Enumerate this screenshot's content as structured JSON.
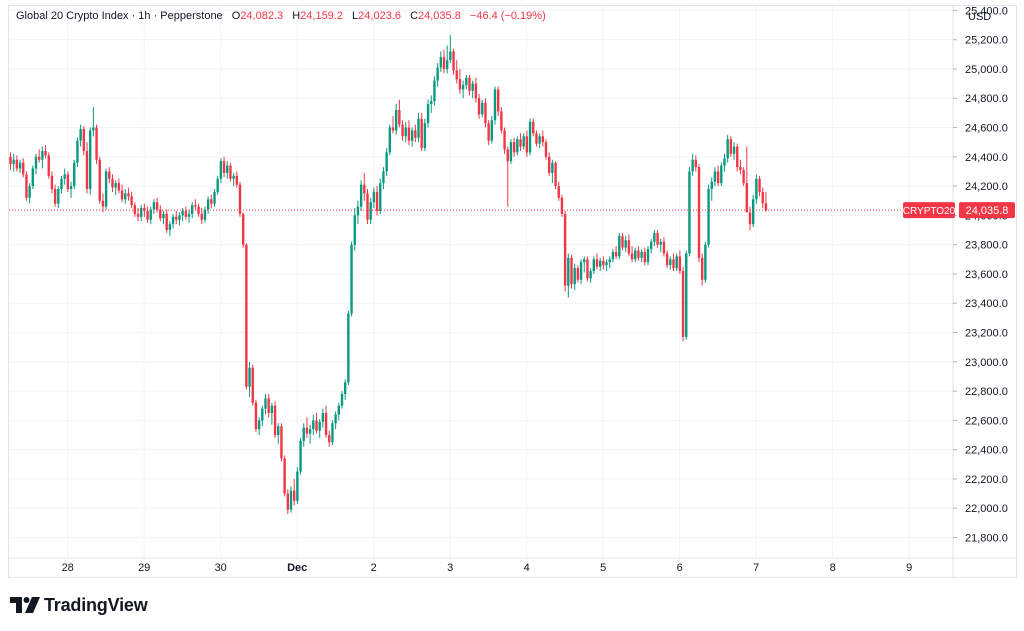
{
  "legend": {
    "symbol_title": "Global 20 Crypto Index · 1h · Pepperstone",
    "open_label": "O",
    "open": "24,082.3",
    "high_label": "H",
    "high": "24,159.2",
    "low_label": "L",
    "low": "24,023.6",
    "close_label": "C",
    "close": "24,035.8",
    "change": "−46.4 (−0.19%)"
  },
  "currency": "USD",
  "brand": {
    "name": "TradingView",
    "icon": "tradingview-logo-icon"
  },
  "colors": {
    "up": "#089981",
    "down": "#f23645",
    "grid": "#f0f3fa",
    "axis_text": "#131722"
  },
  "chart_data": {
    "type": "candlestick",
    "symbol_label": "CRYPTO20",
    "last_price": 24035.8,
    "last_price_label": "24,035.8",
    "ylim": [
      21660,
      25430
    ],
    "y_ticks": [
      21800,
      22000,
      22200,
      22400,
      22600,
      22800,
      23000,
      23200,
      23400,
      23600,
      23800,
      24000,
      24200,
      24400,
      24600,
      24800,
      25000,
      25200,
      25400
    ],
    "y_tick_labels": [
      "21,800.0",
      "22,000.0",
      "22,200.0",
      "22,400.0",
      "22,600.0",
      "22,800.0",
      "23,000.0",
      "23,200.0",
      "23,400.0",
      "23,600.0",
      "23,800.0",
      "24,000.0",
      "24,200.0",
      "24,400.0",
      "24,600.0",
      "24,800.0",
      "25,000.0",
      "25,200.0",
      "25,400.0"
    ],
    "x_ticks": [
      "28",
      "29",
      "30",
      "Dec",
      "2",
      "3",
      "4",
      "5",
      "6",
      "7",
      "8",
      "9"
    ],
    "x_tick_positions": [
      4,
      28,
      52,
      76,
      100,
      124,
      148,
      172,
      196,
      220,
      244,
      268
    ],
    "bars_per_day": 24,
    "first_bar_index": 3,
    "candles": [
      [
        24400,
        24430,
        24310,
        24350
      ],
      [
        24350,
        24420,
        24300,
        24380
      ],
      [
        24380,
        24410,
        24300,
        24320
      ],
      [
        24320,
        24380,
        24290,
        24360
      ],
      [
        24360,
        24390,
        24260,
        24280
      ],
      [
        24280,
        24300,
        24100,
        24120
      ],
      [
        24120,
        24220,
        24080,
        24200
      ],
      [
        24200,
        24340,
        24180,
        24320
      ],
      [
        24320,
        24420,
        24280,
        24400
      ],
      [
        24400,
        24450,
        24360,
        24380
      ],
      [
        24380,
        24470,
        24320,
        24440
      ],
      [
        24440,
        24480,
        24390,
        24410
      ],
      [
        24410,
        24430,
        24250,
        24270
      ],
      [
        24270,
        24300,
        24150,
        24180
      ],
      [
        24180,
        24210,
        24060,
        24080
      ],
      [
        24080,
        24200,
        24050,
        24180
      ],
      [
        24180,
        24270,
        24150,
        24250
      ],
      [
        24250,
        24320,
        24210,
        24280
      ],
      [
        24280,
        24300,
        24160,
        24180
      ],
      [
        24180,
        24230,
        24120,
        24200
      ],
      [
        24200,
        24380,
        24180,
        24360
      ],
      [
        24360,
        24530,
        24330,
        24510
      ],
      [
        24510,
        24620,
        24470,
        24590
      ],
      [
        24590,
        24610,
        24410,
        24440
      ],
      [
        24440,
        24500,
        24150,
        24180
      ],
      [
        24180,
        24600,
        24140,
        24580
      ],
      [
        24580,
        24740,
        24540,
        24600
      ],
      [
        24600,
        24620,
        24350,
        24380
      ],
      [
        24380,
        24400,
        24080,
        24100
      ],
      [
        24100,
        24150,
        24020,
        24060
      ],
      [
        24060,
        24320,
        24040,
        24300
      ],
      [
        24300,
        24330,
        24220,
        24250
      ],
      [
        24250,
        24280,
        24160,
        24190
      ],
      [
        24190,
        24240,
        24140,
        24220
      ],
      [
        24220,
        24250,
        24150,
        24170
      ],
      [
        24170,
        24210,
        24090,
        24110
      ],
      [
        24110,
        24180,
        24080,
        24150
      ],
      [
        24150,
        24190,
        24100,
        24130
      ],
      [
        24130,
        24160,
        24050,
        24070
      ],
      [
        24070,
        24090,
        23990,
        24010
      ],
      [
        24010,
        24050,
        23960,
        23990
      ],
      [
        23990,
        24070,
        23960,
        24050
      ],
      [
        24050,
        24080,
        23990,
        24030
      ],
      [
        24030,
        24060,
        23950,
        23970
      ],
      [
        23970,
        24060,
        23940,
        24040
      ],
      [
        24040,
        24110,
        24010,
        24090
      ],
      [
        24090,
        24120,
        24020,
        24040
      ],
      [
        24040,
        24070,
        23960,
        23980
      ],
      [
        23980,
        24030,
        23940,
        24010
      ],
      [
        24010,
        24040,
        23880,
        23900
      ],
      [
        23900,
        23960,
        23860,
        23940
      ],
      [
        23940,
        24010,
        23910,
        23990
      ],
      [
        23990,
        24030,
        23940,
        23970
      ],
      [
        23970,
        24020,
        23930,
        24000
      ],
      [
        24000,
        24050,
        23960,
        24030
      ],
      [
        24030,
        24060,
        23970,
        23990
      ],
      [
        23990,
        24040,
        23950,
        24010
      ],
      [
        24010,
        24090,
        23980,
        24070
      ],
      [
        24070,
        24110,
        24040,
        24060
      ],
      [
        24060,
        24080,
        23990,
        24010
      ],
      [
        24010,
        24050,
        23940,
        23970
      ],
      [
        23970,
        24060,
        23950,
        24040
      ],
      [
        24040,
        24130,
        24010,
        24110
      ],
      [
        24110,
        24140,
        24050,
        24080
      ],
      [
        24080,
        24180,
        24060,
        24160
      ],
      [
        24160,
        24270,
        24140,
        24250
      ],
      [
        24250,
        24390,
        24220,
        24370
      ],
      [
        24370,
        24400,
        24260,
        24290
      ],
      [
        24290,
        24370,
        24250,
        24340
      ],
      [
        24340,
        24360,
        24230,
        24250
      ],
      [
        24250,
        24290,
        24200,
        24270
      ],
      [
        24270,
        24300,
        24190,
        24210
      ],
      [
        24210,
        24230,
        23990,
        24010
      ],
      [
        24010,
        24020,
        23780,
        23800
      ],
      [
        23800,
        23810,
        22810,
        22830
      ],
      [
        22830,
        23000,
        22760,
        22960
      ],
      [
        22960,
        22980,
        22700,
        22720
      ],
      [
        22720,
        22740,
        22520,
        22540
      ],
      [
        22540,
        22620,
        22500,
        22600
      ],
      [
        22600,
        22700,
        22560,
        22680
      ],
      [
        22680,
        22780,
        22640,
        22750
      ],
      [
        22750,
        22780,
        22620,
        22650
      ],
      [
        22650,
        22720,
        22570,
        22700
      ],
      [
        22700,
        22730,
        22480,
        22500
      ],
      [
        22500,
        22580,
        22440,
        22560
      ],
      [
        22560,
        22580,
        22320,
        22340
      ],
      [
        22340,
        22360,
        22080,
        22100
      ],
      [
        22100,
        22130,
        21960,
        21990
      ],
      [
        21990,
        22150,
        21970,
        22120
      ],
      [
        22120,
        22200,
        22020,
        22050
      ],
      [
        22050,
        22280,
        22030,
        22250
      ],
      [
        22250,
        22480,
        22230,
        22460
      ],
      [
        22460,
        22580,
        22420,
        22550
      ],
      [
        22550,
        22620,
        22480,
        22510
      ],
      [
        22510,
        22570,
        22440,
        22540
      ],
      [
        22540,
        22640,
        22500,
        22600
      ],
      [
        22600,
        22650,
        22510,
        22530
      ],
      [
        22530,
        22610,
        22480,
        22590
      ],
      [
        22590,
        22680,
        22550,
        22650
      ],
      [
        22650,
        22700,
        22480,
        22500
      ],
      [
        22500,
        22530,
        22420,
        22450
      ],
      [
        22450,
        22600,
        22430,
        22580
      ],
      [
        22580,
        22660,
        22540,
        22640
      ],
      [
        22640,
        22720,
        22600,
        22700
      ],
      [
        22700,
        22800,
        22680,
        22780
      ],
      [
        22780,
        22880,
        22740,
        22860
      ],
      [
        22860,
        23350,
        22840,
        23330
      ],
      [
        23330,
        23820,
        23310,
        23800
      ],
      [
        23800,
        24050,
        23760,
        24000
      ],
      [
        24000,
        24100,
        23940,
        24060
      ],
      [
        24060,
        24240,
        24030,
        24210
      ],
      [
        24210,
        24290,
        24100,
        24150
      ],
      [
        24150,
        24180,
        23940,
        23970
      ],
      [
        23970,
        24120,
        23940,
        24090
      ],
      [
        24090,
        24190,
        24050,
        24160
      ],
      [
        24160,
        24200,
        24000,
        24030
      ],
      [
        24030,
        24250,
        24010,
        24220
      ],
      [
        24220,
        24330,
        24180,
        24300
      ],
      [
        24300,
        24460,
        24270,
        24430
      ],
      [
        24430,
        24620,
        24410,
        24600
      ],
      [
        24600,
        24680,
        24560,
        24580
      ],
      [
        24580,
        24760,
        24550,
        24720
      ],
      [
        24720,
        24790,
        24600,
        24620
      ],
      [
        24620,
        24650,
        24510,
        24540
      ],
      [
        24540,
        24640,
        24500,
        24600
      ],
      [
        24600,
        24650,
        24480,
        24510
      ],
      [
        24510,
        24600,
        24470,
        24580
      ],
      [
        24580,
        24620,
        24500,
        24530
      ],
      [
        24530,
        24700,
        24500,
        24660
      ],
      [
        24660,
        24700,
        24440,
        24460
      ],
      [
        24460,
        24660,
        24440,
        24630
      ],
      [
        24630,
        24790,
        24600,
        24760
      ],
      [
        24760,
        24820,
        24700,
        24780
      ],
      [
        24780,
        24950,
        24750,
        24920
      ],
      [
        24920,
        25040,
        24880,
        25010
      ],
      [
        25010,
        25120,
        24980,
        25080
      ],
      [
        25080,
        25130,
        24970,
        25000
      ],
      [
        25000,
        25160,
        24970,
        25060
      ],
      [
        25060,
        25230,
        25040,
        25120
      ],
      [
        25120,
        25140,
        24960,
        24990
      ],
      [
        24990,
        25060,
        24900,
        24930
      ],
      [
        24930,
        25000,
        24830,
        24860
      ],
      [
        24860,
        24920,
        24800,
        24890
      ],
      [
        24890,
        24960,
        24860,
        24940
      ],
      [
        24940,
        24960,
        24820,
        24850
      ],
      [
        24850,
        24920,
        24800,
        24900
      ],
      [
        24900,
        24940,
        24770,
        24800
      ],
      [
        24800,
        24830,
        24660,
        24690
      ],
      [
        24690,
        24790,
        24670,
        24770
      ],
      [
        24770,
        24800,
        24600,
        24630
      ],
      [
        24630,
        24650,
        24480,
        24510
      ],
      [
        24510,
        24680,
        24490,
        24650
      ],
      [
        24650,
        24880,
        24620,
        24860
      ],
      [
        24860,
        24880,
        24680,
        24710
      ],
      [
        24710,
        24740,
        24560,
        24580
      ],
      [
        24580,
        24600,
        24420,
        24450
      ],
      [
        24450,
        24470,
        24060,
        24370
      ],
      [
        24370,
        24520,
        24350,
        24500
      ],
      [
        24500,
        24530,
        24400,
        24430
      ],
      [
        24430,
        24540,
        24410,
        24520
      ],
      [
        24520,
        24560,
        24440,
        24470
      ],
      [
        24470,
        24560,
        24450,
        24540
      ],
      [
        24540,
        24580,
        24400,
        24430
      ],
      [
        24430,
        24660,
        24410,
        24640
      ],
      [
        24640,
        24660,
        24540,
        24560
      ],
      [
        24560,
        24580,
        24470,
        24490
      ],
      [
        24490,
        24560,
        24460,
        24540
      ],
      [
        24540,
        24580,
        24470,
        24500
      ],
      [
        24500,
        24520,
        24380,
        24400
      ],
      [
        24400,
        24430,
        24270,
        24290
      ],
      [
        24290,
        24380,
        24220,
        24360
      ],
      [
        24360,
        24370,
        24180,
        24200
      ],
      [
        24200,
        24230,
        24100,
        24120
      ],
      [
        24120,
        24140,
        23990,
        24010
      ],
      [
        24010,
        24030,
        23480,
        23520
      ],
      [
        23520,
        23740,
        23440,
        23710
      ],
      [
        23710,
        23730,
        23500,
        23530
      ],
      [
        23530,
        23670,
        23490,
        23640
      ],
      [
        23640,
        23660,
        23540,
        23560
      ],
      [
        23560,
        23700,
        23530,
        23680
      ],
      [
        23680,
        23720,
        23610,
        23700
      ],
      [
        23700,
        23720,
        23550,
        23570
      ],
      [
        23570,
        23640,
        23540,
        23620
      ],
      [
        23620,
        23720,
        23600,
        23700
      ],
      [
        23700,
        23740,
        23630,
        23650
      ],
      [
        23650,
        23710,
        23620,
        23690
      ],
      [
        23690,
        23720,
        23630,
        23660
      ],
      [
        23660,
        23700,
        23620,
        23680
      ],
      [
        23680,
        23720,
        23640,
        23700
      ],
      [
        23700,
        23770,
        23680,
        23750
      ],
      [
        23750,
        23790,
        23700,
        23720
      ],
      [
        23720,
        23880,
        23700,
        23860
      ],
      [
        23860,
        23880,
        23760,
        23780
      ],
      [
        23780,
        23860,
        23750,
        23830
      ],
      [
        23830,
        23870,
        23720,
        23740
      ],
      [
        23740,
        23790,
        23680,
        23700
      ],
      [
        23700,
        23780,
        23680,
        23760
      ],
      [
        23760,
        23790,
        23690,
        23710
      ],
      [
        23710,
        23770,
        23680,
        23750
      ],
      [
        23750,
        23780,
        23660,
        23680
      ],
      [
        23680,
        23790,
        23660,
        23770
      ],
      [
        23770,
        23840,
        23740,
        23820
      ],
      [
        23820,
        23900,
        23790,
        23880
      ],
      [
        23880,
        23900,
        23780,
        23800
      ],
      [
        23800,
        23840,
        23750,
        23820
      ],
      [
        23820,
        23850,
        23720,
        23740
      ],
      [
        23740,
        23760,
        23640,
        23660
      ],
      [
        23660,
        23720,
        23630,
        23700
      ],
      [
        23700,
        23740,
        23620,
        23640
      ],
      [
        23640,
        23740,
        23620,
        23720
      ],
      [
        23720,
        23760,
        23600,
        23620
      ],
      [
        23620,
        23650,
        23140,
        23170
      ],
      [
        23170,
        23760,
        23150,
        23740
      ],
      [
        23740,
        24330,
        23720,
        24300
      ],
      [
        24300,
        24420,
        24270,
        24380
      ],
      [
        24380,
        24410,
        24300,
        24330
      ],
      [
        24330,
        24350,
        23680,
        23710
      ],
      [
        23710,
        23740,
        23520,
        23560
      ],
      [
        23560,
        23820,
        23540,
        23800
      ],
      [
        23800,
        24210,
        23780,
        24180
      ],
      [
        24180,
        24260,
        24100,
        24230
      ],
      [
        24230,
        24330,
        24200,
        24300
      ],
      [
        24300,
        24340,
        24200,
        24220
      ],
      [
        24220,
        24360,
        24200,
        24340
      ],
      [
        24340,
        24420,
        24300,
        24390
      ],
      [
        24390,
        24550,
        24360,
        24520
      ],
      [
        24520,
        24540,
        24400,
        24420
      ],
      [
        24420,
        24500,
        24380,
        24470
      ],
      [
        24470,
        24490,
        24300,
        24330
      ],
      [
        24330,
        24380,
        24280,
        24310
      ],
      [
        24310,
        24330,
        24200,
        24220
      ],
      [
        24220,
        24470,
        24050,
        24020
      ],
      [
        24020,
        24060,
        23900,
        23940
      ],
      [
        23940,
        24140,
        23920,
        24110
      ],
      [
        24110,
        24280,
        24080,
        24250
      ],
      [
        24250,
        24270,
        24130,
        24160
      ],
      [
        24160,
        24190,
        24050,
        24082.3
      ],
      [
        24082.3,
        24159.2,
        24023.6,
        24035.8
      ]
    ]
  }
}
